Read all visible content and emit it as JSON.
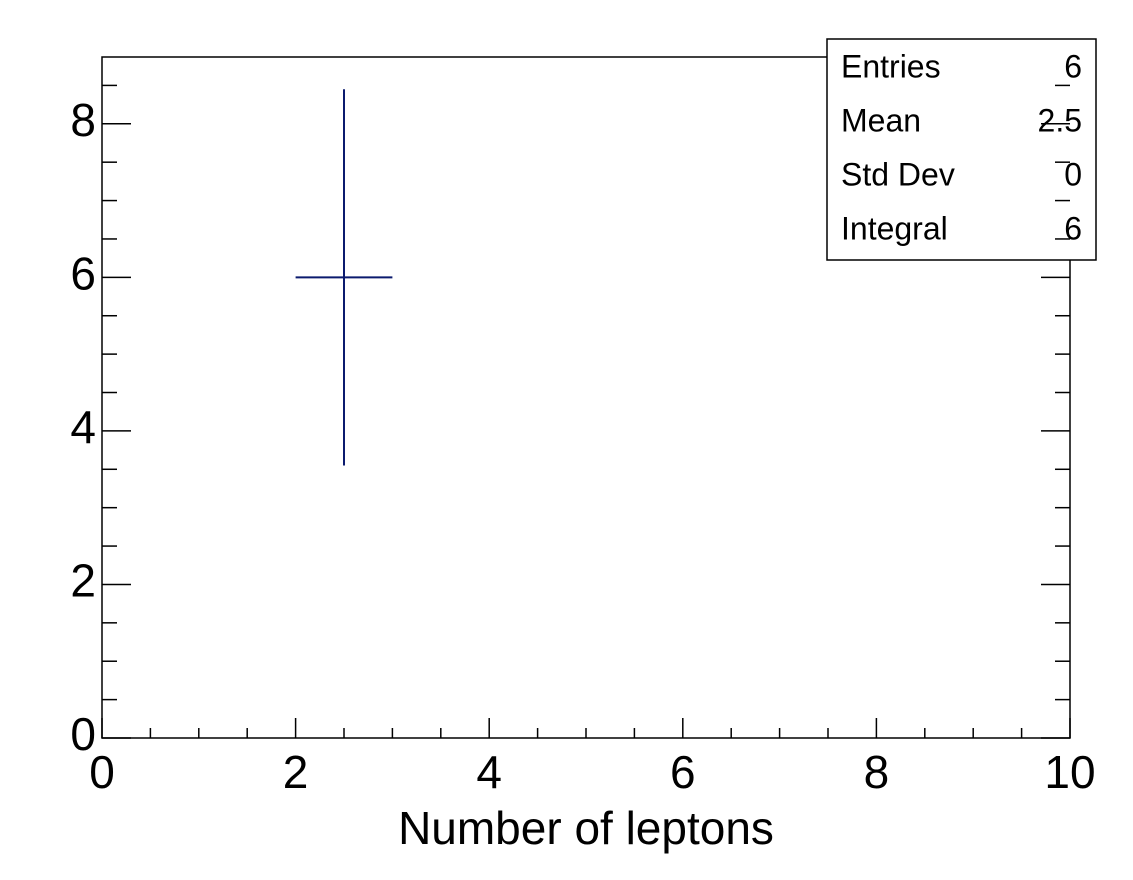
{
  "chart_data": {
    "type": "histogram",
    "x_label": "Number of leptons",
    "bins": [
      2,
      3
    ],
    "counts": [
      6
    ],
    "errors": [
      2.45
    ],
    "color": "#0b1a6e",
    "xlim": [
      0,
      10
    ],
    "xticks": [
      0,
      2,
      4,
      6,
      8,
      10
    ],
    "xminorticks": [
      0.5,
      1,
      1.5,
      2.5,
      3,
      3.5,
      4.5,
      5,
      5.5,
      6.5,
      7,
      7.5,
      8.5,
      9,
      9.5
    ],
    "ylim": [
      0,
      8.87
    ],
    "yticks": [
      0,
      2,
      4,
      6,
      8
    ],
    "yminorticks": [
      0.5,
      1,
      1.5,
      2.5,
      3,
      3.5,
      4.5,
      5,
      5.5,
      6.5,
      7,
      7.5,
      8.5
    ],
    "stats": [
      {
        "label": "Entries",
        "value": 6
      },
      {
        "label": "Mean",
        "value": 2.5
      },
      {
        "label": "Std Dev",
        "value": 0
      },
      {
        "label": "Integral",
        "value": 6
      }
    ]
  }
}
